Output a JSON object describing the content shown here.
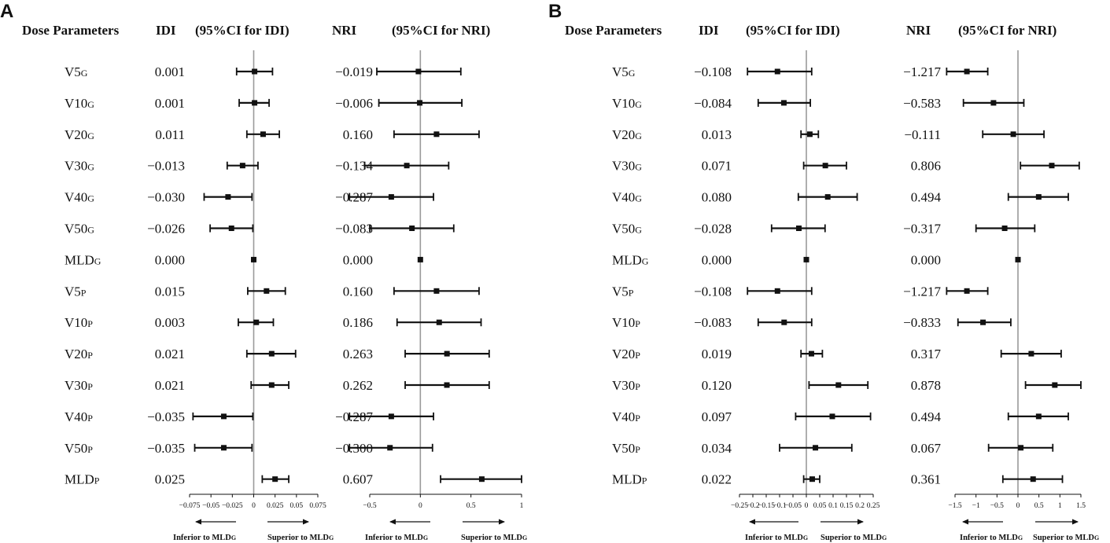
{
  "chart_data": [
    {
      "panel": "A",
      "type": "forest",
      "headers": {
        "parameter": "Dose Parameters",
        "idi": "IDI",
        "idi_ci": "(95%CI for IDI)",
        "nri": "NRI",
        "nri_ci": "(95%CI for NRI)"
      },
      "rows": [
        {
          "base": "V5",
          "sub": "G",
          "idi": "0.001",
          "nri": "−0.019"
        },
        {
          "base": "V10",
          "sub": "G",
          "idi": "0.001",
          "nri": "−0.006"
        },
        {
          "base": "V20",
          "sub": "G",
          "idi": "0.011",
          "nri": "0.160"
        },
        {
          "base": "V30",
          "sub": "G",
          "idi": "−0.013",
          "nri": "−0.134"
        },
        {
          "base": "V40",
          "sub": "G",
          "idi": "−0.030",
          "nri": "−0.287"
        },
        {
          "base": "V50",
          "sub": "G",
          "idi": "−0.026",
          "nri": "−0.083"
        },
        {
          "base": "MLD",
          "sub": "G",
          "idi": "0.000",
          "nri": "0.000"
        },
        {
          "base": "V5",
          "sub": "P",
          "idi": "0.015",
          "nri": "0.160"
        },
        {
          "base": "V10",
          "sub": "P",
          "idi": "0.003",
          "nri": "0.186"
        },
        {
          "base": "V20",
          "sub": "P",
          "idi": "0.021",
          "nri": "0.263"
        },
        {
          "base": "V30",
          "sub": "P",
          "idi": "0.021",
          "nri": "0.262"
        },
        {
          "base": "V40",
          "sub": "P",
          "idi": "−0.035",
          "nri": "−0.287"
        },
        {
          "base": "V50",
          "sub": "P",
          "idi": "−0.035",
          "nri": "−0.300"
        },
        {
          "base": "MLD",
          "sub": "P",
          "idi": "0.025",
          "nri": "0.607"
        }
      ],
      "idi_plot": {
        "xlim": [
          -0.075,
          0.075
        ],
        "ticks": [
          "-0.075",
          "-0.05",
          "-0.025",
          "0",
          "0.025",
          "0.05",
          "0.075"
        ],
        "ci": [
          [
            -0.02,
            0.022
          ],
          [
            -0.017,
            0.018
          ],
          [
            -0.008,
            0.03
          ],
          [
            -0.031,
            0.005
          ],
          [
            -0.058,
            -0.002
          ],
          [
            -0.051,
            -0.001
          ],
          [
            0,
            0
          ],
          [
            -0.007,
            0.037
          ],
          [
            -0.018,
            0.023
          ],
          [
            -0.008,
            0.049
          ],
          [
            -0.003,
            0.041
          ],
          [
            -0.071,
            -0.001
          ],
          [
            -0.069,
            -0.002
          ],
          [
            0.01,
            0.041
          ]
        ]
      },
      "nri_plot": {
        "xlim": [
          -0.5,
          1
        ],
        "ticks": [
          "-0.5",
          "0",
          "0.5",
          "1"
        ],
        "ci": [
          [
            -0.43,
            0.4
          ],
          [
            -0.41,
            0.41
          ],
          [
            -0.26,
            0.58
          ],
          [
            -0.55,
            0.28
          ],
          [
            -0.7,
            0.13
          ],
          [
            -0.5,
            0.33
          ],
          [
            0,
            0
          ],
          [
            -0.26,
            0.58
          ],
          [
            -0.23,
            0.6
          ],
          [
            -0.15,
            0.68
          ],
          [
            -0.15,
            0.68
          ],
          [
            -0.7,
            0.13
          ],
          [
            -0.7,
            0.12
          ],
          [
            0.2,
            1.0
          ]
        ]
      },
      "arrows": {
        "left": "Inferior to MLD",
        "right": "Superior to MLD",
        "sub": "G"
      }
    },
    {
      "panel": "B",
      "type": "forest",
      "headers": {
        "parameter": "Dose Parameters",
        "idi": "IDI",
        "idi_ci": "(95%CI for IDI)",
        "nri": "NRI",
        "nri_ci": "(95%CI for NRI)"
      },
      "rows": [
        {
          "base": "V5",
          "sub": "G",
          "idi": "−0.108",
          "nri": "−1.217"
        },
        {
          "base": "V10",
          "sub": "G",
          "idi": "−0.084",
          "nri": "−0.583"
        },
        {
          "base": "V20",
          "sub": "G",
          "idi": "0.013",
          "nri": "−0.111"
        },
        {
          "base": "V30",
          "sub": "G",
          "idi": "0.071",
          "nri": "0.806"
        },
        {
          "base": "V40",
          "sub": "G",
          "idi": "0.080",
          "nri": "0.494"
        },
        {
          "base": "V50",
          "sub": "G",
          "idi": "−0.028",
          "nri": "−0.317"
        },
        {
          "base": "MLD",
          "sub": "G",
          "idi": "0.000",
          "nri": "0.000"
        },
        {
          "base": "V5",
          "sub": "P",
          "idi": "−0.108",
          "nri": "−1.217"
        },
        {
          "base": "V10",
          "sub": "P",
          "idi": "−0.083",
          "nri": "−0.833"
        },
        {
          "base": "V20",
          "sub": "P",
          "idi": "0.019",
          "nri": "0.317"
        },
        {
          "base": "V30",
          "sub": "P",
          "idi": "0.120",
          "nri": "0.878"
        },
        {
          "base": "V40",
          "sub": "P",
          "idi": "0.097",
          "nri": "0.494"
        },
        {
          "base": "V50",
          "sub": "P",
          "idi": "0.034",
          "nri": "0.067"
        },
        {
          "base": "MLD",
          "sub": "P",
          "idi": "0.022",
          "nri": "0.361"
        }
      ],
      "idi_plot": {
        "xlim": [
          -0.25,
          0.25
        ],
        "ticks": [
          "-0.25",
          "-0.2",
          "-0.15",
          "-0.1",
          "-0.05",
          "0",
          "0.05",
          "0.1",
          "0.15",
          "0.2",
          "0.25"
        ],
        "ci": [
          [
            -0.22,
            0.02
          ],
          [
            -0.18,
            0.015
          ],
          [
            -0.02,
            0.045
          ],
          [
            -0.01,
            0.15
          ],
          [
            -0.03,
            0.19
          ],
          [
            -0.13,
            0.07
          ],
          [
            0,
            0
          ],
          [
            -0.22,
            0.02
          ],
          [
            -0.18,
            0.02
          ],
          [
            -0.02,
            0.06
          ],
          [
            0.01,
            0.23
          ],
          [
            -0.04,
            0.24
          ],
          [
            -0.1,
            0.17
          ],
          [
            -0.01,
            0.05
          ]
        ]
      },
      "nri_plot": {
        "xlim": [
          -1.5,
          1.5
        ],
        "ticks": [
          "-1.5",
          "-1",
          "-0.5",
          "0",
          "0.5",
          "1",
          "1.5"
        ],
        "ci": [
          [
            -1.7,
            -0.72
          ],
          [
            -1.3,
            0.14
          ],
          [
            -0.84,
            0.62
          ],
          [
            0.06,
            1.46
          ],
          [
            -0.23,
            1.2
          ],
          [
            -1.0,
            0.4
          ],
          [
            0,
            0
          ],
          [
            -1.7,
            -0.72
          ],
          [
            -1.43,
            -0.17
          ],
          [
            -0.4,
            1.03
          ],
          [
            0.18,
            1.5
          ],
          [
            -0.23,
            1.2
          ],
          [
            -0.7,
            0.83
          ],
          [
            -0.36,
            1.06
          ]
        ]
      },
      "arrows": {
        "left": "Inferior to MLD",
        "right": "Superior to MLD",
        "sub": "G"
      }
    }
  ]
}
